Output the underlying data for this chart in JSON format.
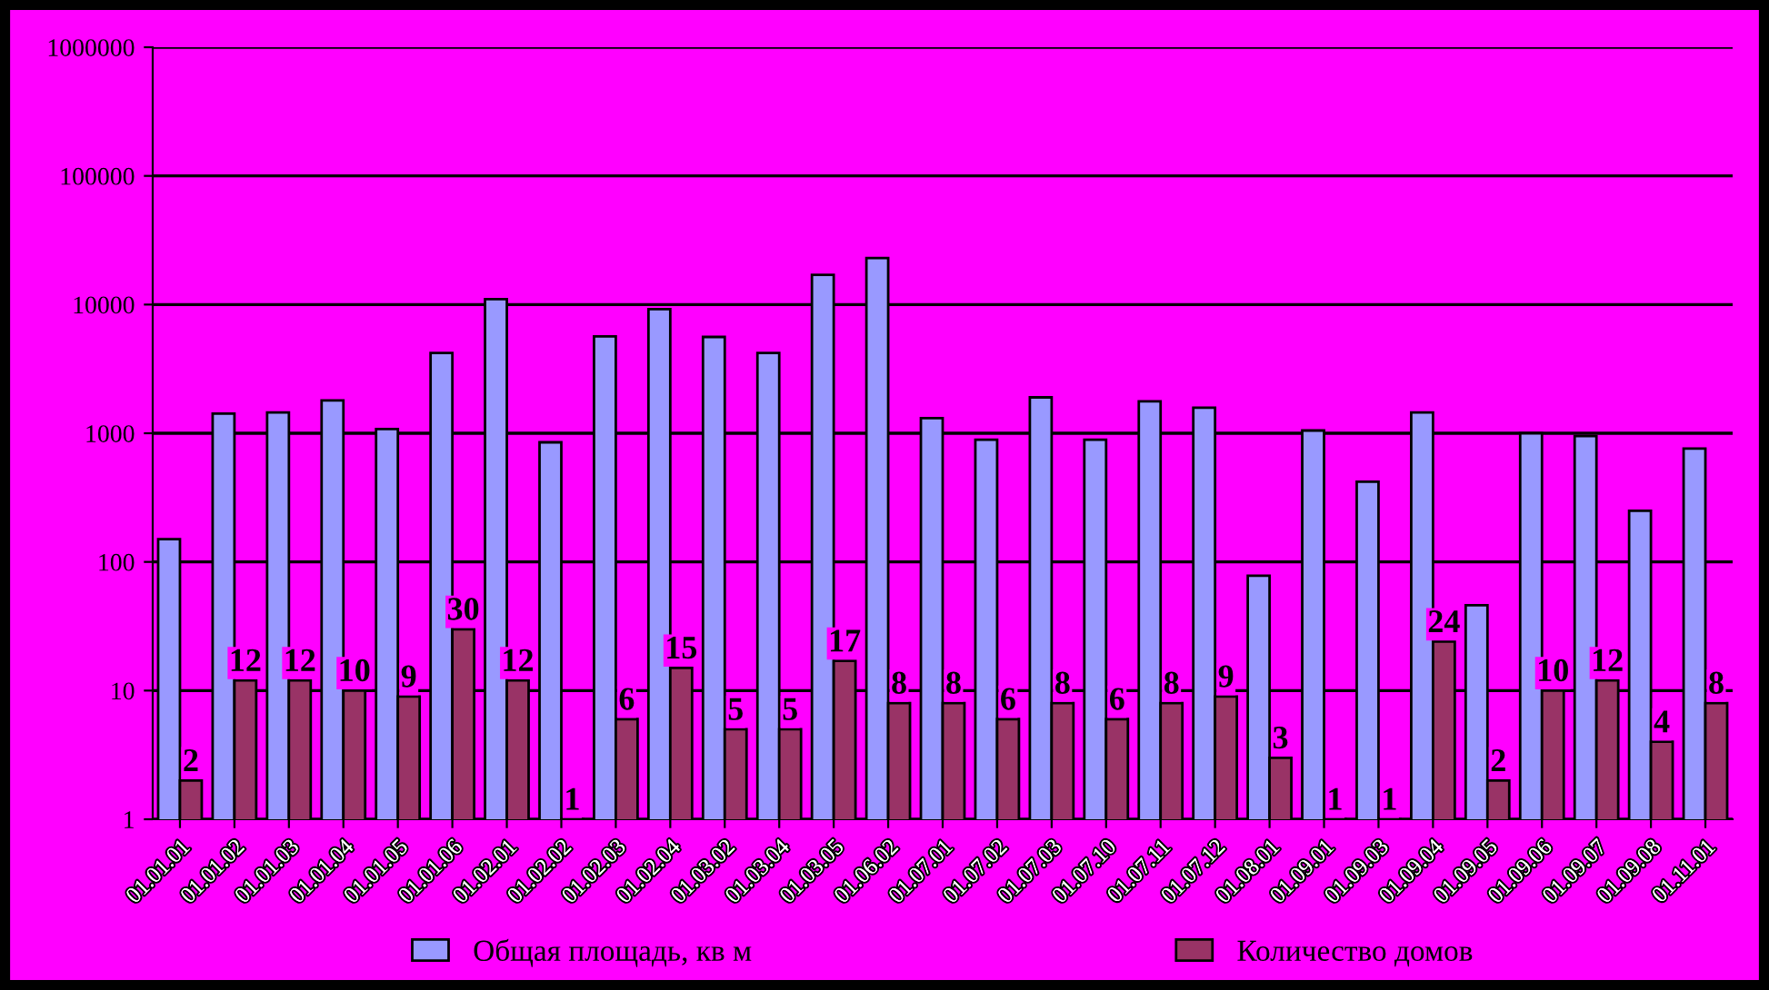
{
  "chart_data": {
    "type": "bar",
    "log": true,
    "categories": [
      "01.01.01",
      "01.01.02",
      "01.01.03",
      "01.01.04",
      "01.01.05",
      "01.01.06",
      "01.02.01",
      "01.02.02",
      "01.02.03",
      "01.02.04",
      "01.03.02",
      "01.03.04",
      "01.03.05",
      "01.06.02",
      "01.07.01",
      "01.07.02",
      "01.07.03",
      "01.07.10",
      "01.07.11",
      "01.07.12",
      "01.08.01",
      "01.09.01",
      "01.09.03",
      "01.09.04",
      "01.09.05",
      "01.09.06",
      "01.09.07",
      "01.09.08",
      "01.11.01"
    ],
    "series": [
      {
        "name": "Общая площадь, кв м",
        "color": "#9999ff",
        "values": [
          150,
          1420,
          1450,
          1800,
          1080,
          4200,
          11000,
          850,
          5650,
          9200,
          5600,
          4200,
          17000,
          23000,
          1310,
          890,
          1900,
          890,
          1770,
          1580,
          78,
          1050,
          420,
          1450,
          46,
          1000,
          950,
          250,
          760
        ]
      },
      {
        "name": "Количество домов",
        "color": "#993366",
        "values": [
          2,
          12,
          12,
          10,
          9,
          30,
          12,
          1,
          6,
          15,
          5,
          5,
          17,
          8,
          8,
          6,
          8,
          6,
          8,
          9,
          3,
          1,
          1,
          24,
          2,
          10,
          12,
          4,
          8
        ],
        "value_labels": [
          "2",
          "12",
          "12",
          "10",
          "9",
          "30",
          "12",
          "1",
          "6",
          "15",
          "5",
          "5",
          "17",
          "8",
          "8",
          "6",
          "8",
          "6",
          "8",
          "9",
          "3",
          "1",
          "1",
          "24",
          "2",
          "10",
          "12",
          "4",
          "8"
        ]
      }
    ],
    "ylim": [
      1,
      1000000
    ],
    "yticks": [
      1,
      10,
      100,
      1000,
      10000,
      100000,
      1000000
    ],
    "grid": "y",
    "legend": "bottom"
  }
}
